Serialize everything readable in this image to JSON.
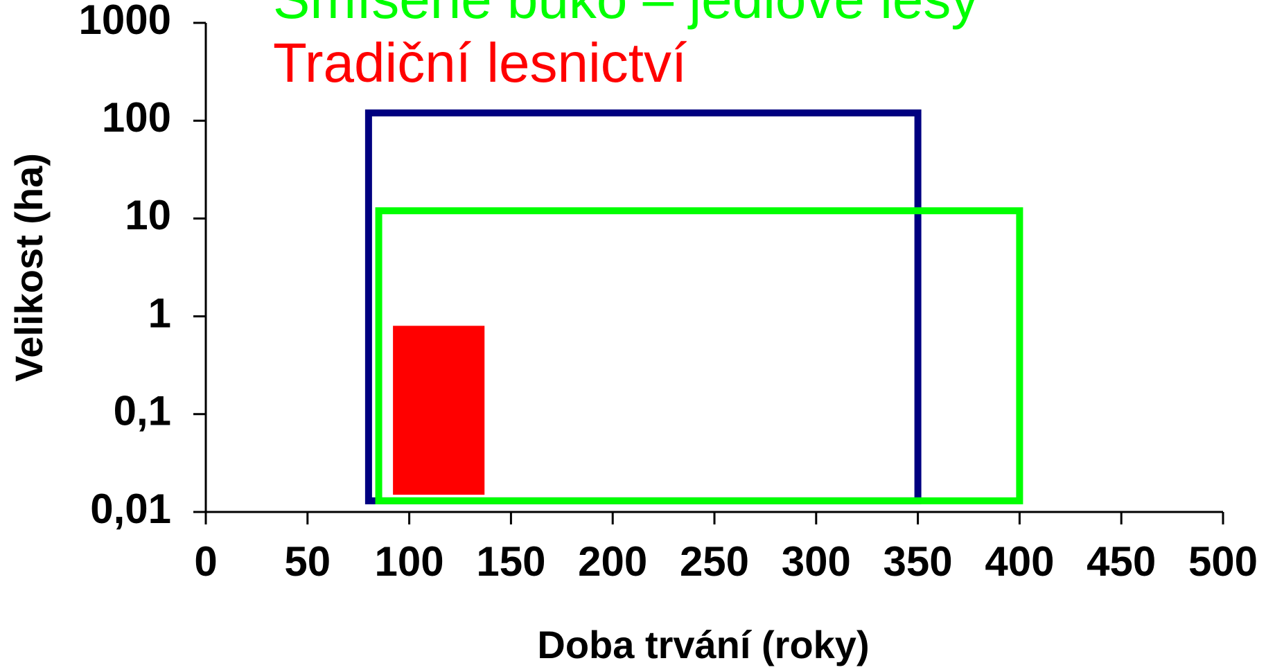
{
  "chart_data": {
    "type": "rectangle",
    "xlabel": "Doba trvání (roky)",
    "ylabel": "Velikost (ha)",
    "xlim": [
      0,
      500
    ],
    "xticks": [
      0,
      50,
      100,
      150,
      200,
      250,
      300,
      350,
      400,
      450,
      500
    ],
    "ylim": [
      0.01,
      1000
    ],
    "ylog": true,
    "yticks": [
      {
        "value": 0.01,
        "label": "0,01"
      },
      {
        "value": 0.1,
        "label": "0,1"
      },
      1,
      10,
      100,
      1000
    ],
    "series": [
      {
        "color": "#000080",
        "filled": false,
        "x": [
          80,
          350
        ],
        "y": [
          0.013,
          120
        ]
      },
      {
        "name": "Smíšené buko – jedlové lesy",
        "color": "#00ff00",
        "filled": false,
        "x": [
          85,
          400
        ],
        "y": [
          0.013,
          12
        ]
      },
      {
        "name": "Tradiční lesnictví",
        "color": "#ff0000",
        "filled": true,
        "x": [
          92,
          137
        ],
        "y": [
          0.015,
          0.8
        ]
      }
    ]
  }
}
